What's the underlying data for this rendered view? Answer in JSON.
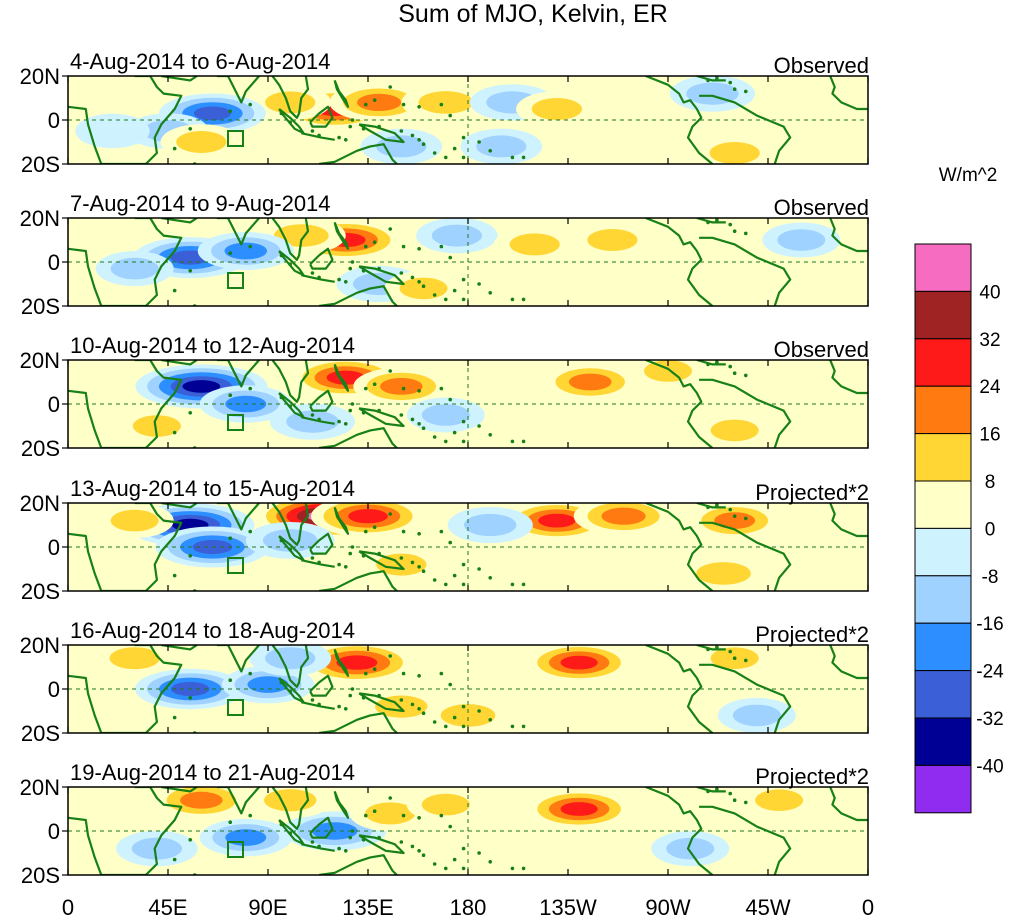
{
  "title": "Sum of MJO, Kelvin, ER",
  "lat_labels": [
    "20N",
    "0",
    "20S"
  ],
  "lon_labels": [
    "0",
    "45E",
    "90E",
    "135E",
    "180",
    "135W",
    "90W",
    "45W",
    "0"
  ],
  "colorbar": {
    "units": "W/m^2",
    "labels": [
      "40",
      "32",
      "24",
      "16",
      "8",
      "0",
      "-8",
      "-16",
      "-24",
      "-32",
      "-40"
    ],
    "colors": [
      "#f56cc0",
      "#a02323",
      "#ff1a1a",
      "#ff7a10",
      "#ffd633",
      "#ffffc8",
      "#cff2ff",
      "#a0d2ff",
      "#2d8fff",
      "#3a5fd6",
      "#000095",
      "#8f2cef"
    ]
  },
  "panels": [
    {
      "dates": "4-Aug-2014 to 6-Aug-2014",
      "kind": "Observed"
    },
    {
      "dates": "7-Aug-2014 to 9-Aug-2014",
      "kind": "Observed"
    },
    {
      "dates": "10-Aug-2014 to 12-Aug-2014",
      "kind": "Observed"
    },
    {
      "dates": "13-Aug-2014 to 15-Aug-2014",
      "kind": "Projected*2"
    },
    {
      "dates": "16-Aug-2014 to 18-Aug-2014",
      "kind": "Projected*2"
    },
    {
      "dates": "19-Aug-2014 to 21-Aug-2014",
      "kind": "Projected*2"
    }
  ],
  "anomaly_fields": [
    [
      {
        "lon": 120,
        "lat": 5,
        "value": 28
      },
      {
        "lon": 140,
        "lat": 8,
        "value": 22
      },
      {
        "lon": 100,
        "lat": 8,
        "value": 12
      },
      {
        "lon": 170,
        "lat": 8,
        "value": 16
      },
      {
        "lon": 200,
        "lat": 8,
        "value": -14
      },
      {
        "lon": 220,
        "lat": 5,
        "value": 12
      },
      {
        "lon": 65,
        "lat": 3,
        "value": -26
      },
      {
        "lon": 45,
        "lat": -5,
        "value": -12
      },
      {
        "lon": 20,
        "lat": -5,
        "value": -8
      },
      {
        "lon": 60,
        "lat": -10,
        "value": 12
      },
      {
        "lon": 150,
        "lat": -12,
        "value": -12
      },
      {
        "lon": 195,
        "lat": -12,
        "value": -12
      },
      {
        "lon": 300,
        "lat": -15,
        "value": 12
      },
      {
        "lon": 290,
        "lat": 12,
        "value": -14
      }
    ],
    [
      {
        "lon": 125,
        "lat": 10,
        "value": 30
      },
      {
        "lon": 105,
        "lat": 12,
        "value": 16
      },
      {
        "lon": 55,
        "lat": 2,
        "value": -30
      },
      {
        "lon": 80,
        "lat": 5,
        "value": -20
      },
      {
        "lon": 30,
        "lat": -3,
        "value": -10
      },
      {
        "lon": 175,
        "lat": 12,
        "value": -12
      },
      {
        "lon": 210,
        "lat": 8,
        "value": 12
      },
      {
        "lon": 245,
        "lat": 10,
        "value": 12
      },
      {
        "lon": 140,
        "lat": -10,
        "value": -14
      },
      {
        "lon": 160,
        "lat": -12,
        "value": 10
      },
      {
        "lon": 330,
        "lat": 10,
        "value": -10
      }
    ],
    [
      {
        "lon": 60,
        "lat": 8,
        "value": -40
      },
      {
        "lon": 80,
        "lat": 0,
        "value": -18
      },
      {
        "lon": 125,
        "lat": 12,
        "value": 28
      },
      {
        "lon": 150,
        "lat": 8,
        "value": 20
      },
      {
        "lon": 110,
        "lat": -8,
        "value": -14
      },
      {
        "lon": 170,
        "lat": -5,
        "value": -10
      },
      {
        "lon": 235,
        "lat": 10,
        "value": 20
      },
      {
        "lon": 270,
        "lat": 15,
        "value": 10
      },
      {
        "lon": 300,
        "lat": -12,
        "value": 10
      },
      {
        "lon": 40,
        "lat": -10,
        "value": 10
      }
    ],
    [
      {
        "lon": 55,
        "lat": 10,
        "value": -38
      },
      {
        "lon": 65,
        "lat": 0,
        "value": -30
      },
      {
        "lon": 115,
        "lat": 14,
        "value": 42
      },
      {
        "lon": 135,
        "lat": 14,
        "value": 30
      },
      {
        "lon": 100,
        "lat": 3,
        "value": -16
      },
      {
        "lon": 220,
        "lat": 12,
        "value": 26
      },
      {
        "lon": 250,
        "lat": 14,
        "value": 22
      },
      {
        "lon": 150,
        "lat": -8,
        "value": 12
      },
      {
        "lon": 295,
        "lat": -12,
        "value": 16
      },
      {
        "lon": 300,
        "lat": 12,
        "value": 18
      },
      {
        "lon": 190,
        "lat": 10,
        "value": -14
      },
      {
        "lon": 30,
        "lat": 12,
        "value": 10
      }
    ],
    [
      {
        "lon": 130,
        "lat": 12,
        "value": 32
      },
      {
        "lon": 230,
        "lat": 12,
        "value": 26
      },
      {
        "lon": 55,
        "lat": 0,
        "value": -28
      },
      {
        "lon": 90,
        "lat": 2,
        "value": -18
      },
      {
        "lon": 30,
        "lat": 14,
        "value": 12
      },
      {
        "lon": 150,
        "lat": -8,
        "value": 14
      },
      {
        "lon": 180,
        "lat": -12,
        "value": 16
      },
      {
        "lon": 100,
        "lat": 14,
        "value": -12
      },
      {
        "lon": 300,
        "lat": 14,
        "value": 10
      },
      {
        "lon": 310,
        "lat": -12,
        "value": -10
      }
    ],
    [
      {
        "lon": 230,
        "lat": 10,
        "value": 26
      },
      {
        "lon": 60,
        "lat": 14,
        "value": 20
      },
      {
        "lon": 120,
        "lat": 0,
        "value": -24
      },
      {
        "lon": 80,
        "lat": -3,
        "value": -18
      },
      {
        "lon": 40,
        "lat": -8,
        "value": -12
      },
      {
        "lon": 145,
        "lat": 8,
        "value": 12
      },
      {
        "lon": 100,
        "lat": 14,
        "value": 14
      },
      {
        "lon": 170,
        "lat": 12,
        "value": 10
      },
      {
        "lon": 280,
        "lat": -8,
        "value": -10
      },
      {
        "lon": 320,
        "lat": 14,
        "value": 10
      }
    ]
  ]
}
